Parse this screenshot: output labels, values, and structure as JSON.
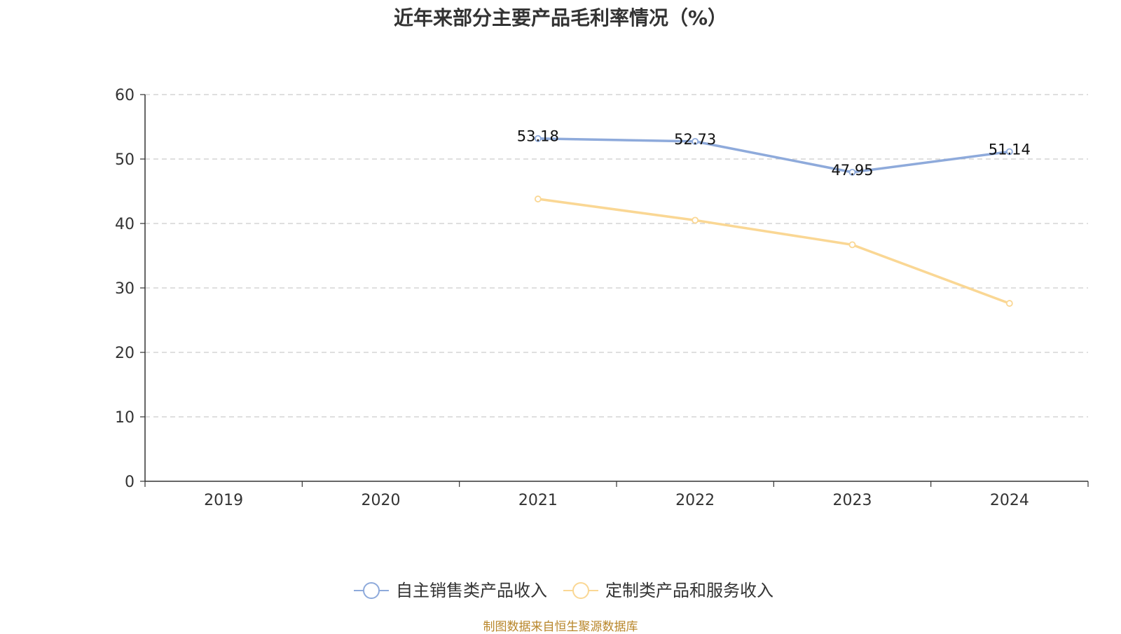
{
  "chart_data": {
    "type": "line",
    "title": "近年来部分主要产品毛利率情况（%）",
    "categories": [
      "2019",
      "2020",
      "2021",
      "2022",
      "2023",
      "2024"
    ],
    "ylim": [
      0,
      60
    ],
    "yticks": [
      "0",
      "10",
      "20",
      "30",
      "40",
      "50",
      "60"
    ],
    "grid": true,
    "legend_position": "bottom-center",
    "series": [
      {
        "name": "自主销售类产品收入",
        "color": "#8eaadb",
        "values": [
          null,
          null,
          53.18,
          52.73,
          47.95,
          51.14
        ],
        "labels": [
          "",
          "",
          "53.18",
          "52.73",
          "47.95",
          "51.14"
        ]
      },
      {
        "name": "定制类产品和服务收入",
        "color": "#fad794",
        "values": [
          null,
          null,
          43.8,
          40.5,
          36.7,
          27.6
        ],
        "labels": [
          "",
          "",
          "",
          "",
          "",
          ""
        ]
      }
    ]
  },
  "footer": {
    "source": "制图数据来自恒生聚源数据库"
  }
}
